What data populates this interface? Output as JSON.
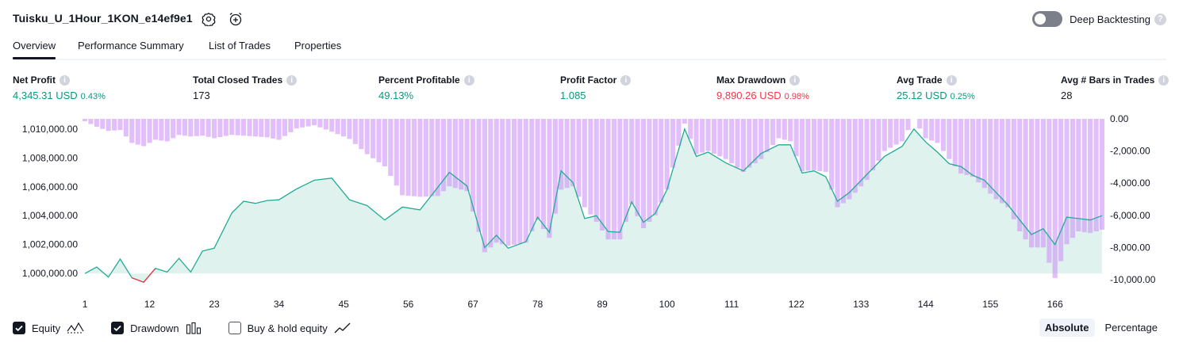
{
  "header": {
    "strategy_name": "Tuisku_U_1Hour_1KON_e14ef9e1",
    "deep_backtesting_label": "Deep Backtesting",
    "deep_backtesting_enabled": false,
    "help_glyph": "?"
  },
  "tabs": [
    "Overview",
    "Performance Summary",
    "List of Trades",
    "Properties"
  ],
  "active_tab": "Overview",
  "metrics": [
    {
      "label": "Net Profit",
      "value": "4,345.31 USD",
      "sub": "0.43%",
      "color": "#089981"
    },
    {
      "label": "Total Closed Trades",
      "value": "173",
      "sub": "",
      "color": "#131722"
    },
    {
      "label": "Percent Profitable",
      "value": "49.13%",
      "sub": "",
      "color": "#089981"
    },
    {
      "label": "Profit Factor",
      "value": "1.085",
      "sub": "",
      "color": "#089981"
    },
    {
      "label": "Max Drawdown",
      "value": "9,890.26 USD",
      "sub": "0.98%",
      "color": "#f23645"
    },
    {
      "label": "Avg Trade",
      "value": "25.12 USD",
      "sub": "0.25%",
      "color": "#089981"
    },
    {
      "label": "Avg # Bars in Trades",
      "value": "28",
      "sub": "",
      "color": "#131722"
    }
  ],
  "legend": {
    "equity": {
      "label": "Equity",
      "checked": true
    },
    "drawdown": {
      "label": "Drawdown",
      "checked": true
    },
    "buy_hold": {
      "label": "Buy & hold equity",
      "checked": false
    }
  },
  "view_modes": [
    "Absolute",
    "Percentage"
  ],
  "active_view_mode": "Absolute",
  "colors": {
    "equity_line": "#22ab94",
    "equity_fill": "#d7efe8",
    "equity_negative": "#f23645",
    "drawdown_bar": "#ce93f8",
    "text": "#131722"
  },
  "chart_data": {
    "type": "area",
    "x_ticks": [
      "1",
      "12",
      "23",
      "34",
      "45",
      "56",
      "67",
      "78",
      "89",
      "100",
      "111",
      "122",
      "133",
      "144",
      "155",
      "166"
    ],
    "left_axis": {
      "ticks": [
        "1,010,000.00",
        "1,008,000.00",
        "1,006,000.00",
        "1,004,000.00",
        "1,002,000.00",
        "1,000,000.00"
      ],
      "ylim": [
        999300,
        1010700
      ]
    },
    "right_axis": {
      "ticks": [
        "0.00",
        "-2,000.00",
        "-4,000.00",
        "-6,000.00",
        "-8,000.00",
        "-10,000.00"
      ],
      "ylim": [
        -10250,
        0
      ]
    },
    "series": [
      {
        "name": "Equity",
        "x": [
          1,
          3,
          5,
          7,
          9,
          11,
          13,
          15,
          17,
          19,
          21,
          23,
          26,
          28,
          30,
          32,
          34,
          37,
          40,
          43,
          46,
          49,
          52,
          55,
          58,
          61,
          63,
          66,
          69,
          71,
          73,
          76,
          78,
          80,
          82,
          84,
          86,
          88,
          90,
          92,
          94,
          96,
          98,
          100,
          103,
          105,
          107,
          110,
          113,
          116,
          119,
          121,
          123,
          125,
          127,
          129,
          131,
          134,
          137,
          140,
          142,
          144,
          146,
          148,
          150,
          152,
          154,
          156,
          158,
          160,
          162,
          164,
          166,
          168,
          170,
          172,
          174
        ],
        "values": [
          1000000,
          1000450,
          999750,
          1001000,
          999700,
          999400,
          1000350,
          1000100,
          1001050,
          1000100,
          1001550,
          1001750,
          1004200,
          1005000,
          1004850,
          1005050,
          1005100,
          1005850,
          1006450,
          1006600,
          1005100,
          1004700,
          1003700,
          1004600,
          1004400,
          1005950,
          1007000,
          1006050,
          1001800,
          1002650,
          1001750,
          1002200,
          1003900,
          1002850,
          1007100,
          1006300,
          1003800,
          1004000,
          1002900,
          1002850,
          1004950,
          1003550,
          1004150,
          1005800,
          1010000,
          1008100,
          1008400,
          1007650,
          1007100,
          1008300,
          1008900,
          1008900,
          1006950,
          1007100,
          1006700,
          1005000,
          1005600,
          1006850,
          1008100,
          1008800,
          1010000,
          1009100,
          1008400,
          1007600,
          1007400,
          1006800,
          1006450,
          1005600,
          1004750,
          1003700,
          1002700,
          1003100,
          1002000,
          1003900,
          1003800,
          1003700,
          1004000
        ]
      },
      {
        "name": "Drawdown",
        "x": [
          1,
          3,
          5,
          7,
          9,
          11,
          13,
          15,
          17,
          19,
          21,
          23,
          26,
          28,
          30,
          32,
          34,
          37,
          40,
          43,
          46,
          49,
          52,
          55,
          58,
          61,
          63,
          66,
          69,
          71,
          73,
          76,
          78,
          80,
          82,
          84,
          86,
          88,
          90,
          92,
          94,
          96,
          98,
          100,
          103,
          105,
          107,
          110,
          113,
          116,
          119,
          121,
          123,
          125,
          127,
          129,
          131,
          134,
          137,
          140,
          142,
          144,
          146,
          148,
          150,
          152,
          154,
          156,
          158,
          160,
          162,
          164,
          166,
          168,
          170,
          172,
          174
        ],
        "values": [
          -150,
          -500,
          -750,
          -700,
          -1500,
          -1700,
          -1300,
          -1400,
          -1000,
          -1100,
          -1050,
          -1200,
          -1000,
          -1050,
          -1100,
          -1150,
          -1300,
          -600,
          -400,
          -800,
          -1250,
          -2200,
          -2950,
          -4750,
          -4850,
          -4800,
          -4200,
          -4500,
          -8300,
          -7700,
          -7900,
          -7700,
          -6300,
          -7400,
          -4400,
          -4200,
          -5500,
          -6400,
          -7500,
          -7500,
          -5300,
          -6800,
          -6000,
          -4400,
          -300,
          -2200,
          -2000,
          -2500,
          -3300,
          -2500,
          -1200,
          -1400,
          -3250,
          -3200,
          -3300,
          -5500,
          -5000,
          -3800,
          -2000,
          -1400,
          0,
          -1200,
          -1500,
          -2500,
          -3400,
          -3600,
          -4300,
          -5000,
          -5500,
          -7000,
          -8000,
          -8000,
          -9900,
          -7800,
          -7000,
          -7100,
          -6900
        ]
      }
    ],
    "negative_equity_segment_x": [
      9,
      11,
      13
    ]
  }
}
